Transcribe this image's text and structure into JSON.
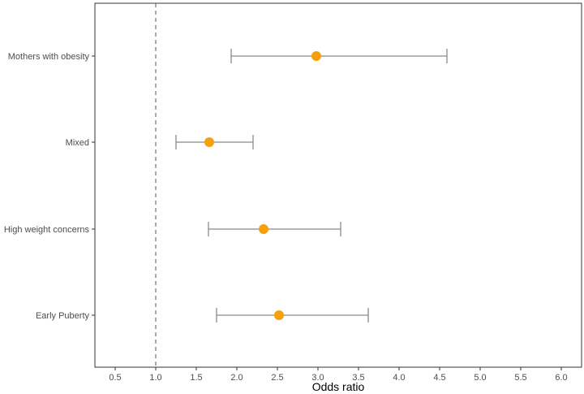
{
  "chart_data": {
    "type": "forest",
    "xlabel": "Odds ratio",
    "ylabel": "",
    "xlim": [
      0.25,
      6.25
    ],
    "xticks": [
      "0.5",
      "1.0",
      "1.5",
      "2.0",
      "2.5",
      "3.0",
      "3.5",
      "4.0",
      "4.5",
      "5.0",
      "5.5",
      "6.0"
    ],
    "reference_line": 1.0,
    "grid": false,
    "categories": [
      "Mothers with obesity",
      "Mixed",
      "High weight concerns",
      "Early Puberty"
    ],
    "estimates": [
      2.98,
      1.66,
      2.33,
      2.52
    ],
    "ci_lower": [
      1.93,
      1.25,
      1.65,
      1.75
    ],
    "ci_upper": [
      4.59,
      2.2,
      3.28,
      3.62
    ],
    "colors": {
      "point": "#f5a00e",
      "errorbar": "#8a8a8a",
      "reference": "#555555",
      "frame": "#333333"
    }
  }
}
